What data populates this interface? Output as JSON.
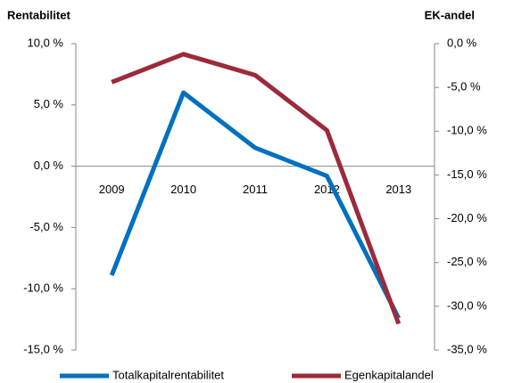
{
  "chart_data": {
    "type": "line",
    "y_label": "Rentabilitet",
    "y2_label": "EK-andel",
    "categories": [
      "2009",
      "2010",
      "2011",
      "2012",
      "2013"
    ],
    "series": [
      {
        "name": "Totalkapitalrentabilitet",
        "color": "#0070c0",
        "values": [
          -8.9,
          6.0,
          1.5,
          -0.8,
          -12.4
        ]
      },
      {
        "name": "Egenkapitalandel",
        "color": "#9b2a3a",
        "axis": "y2",
        "values": [
          -4.4,
          -1.2,
          -3.6,
          -9.9,
          -32.0
        ]
      }
    ],
    "ylim": [
      -15,
      10
    ],
    "yticks": [
      {
        "value": -15,
        "label": "-15,0 %"
      },
      {
        "value": -10,
        "label": "-10,0 %"
      },
      {
        "value": -5,
        "label": "-5,0 %"
      },
      {
        "value": 0,
        "label": "0,0 %"
      },
      {
        "value": 5,
        "label": "5,0 %"
      },
      {
        "value": 10,
        "label": "10,0 %"
      }
    ],
    "y2lim": [
      -35,
      0
    ],
    "y2ticks": [
      {
        "value": -35,
        "label": "-35,0 %"
      },
      {
        "value": -30,
        "label": "-30,0 %"
      },
      {
        "value": -25,
        "label": "-25,0 %"
      },
      {
        "value": -20,
        "label": "-20,0 %"
      },
      {
        "value": -15,
        "label": "-15,0 %"
      },
      {
        "value": -10,
        "label": "-10,0 %"
      },
      {
        "value": -5,
        "label": "-5,0 %"
      },
      {
        "value": 0,
        "label": "0,0 %"
      }
    ],
    "legend": "bottom"
  }
}
